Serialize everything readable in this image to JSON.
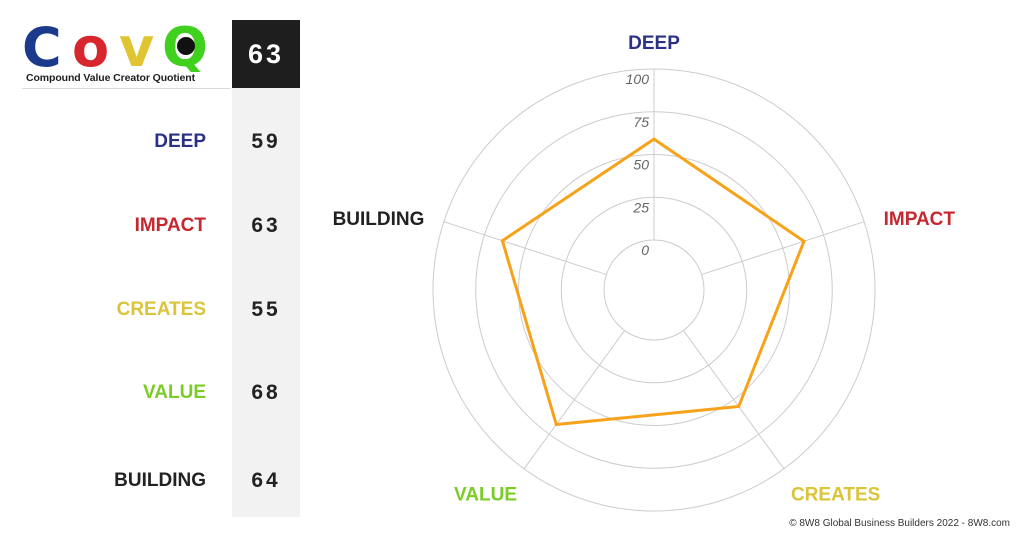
{
  "logo": {
    "letters": [
      {
        "char": "C",
        "color": "#1b3a8c"
      },
      {
        "char": "o",
        "color": "#d7262e"
      },
      {
        "char": "v",
        "color": "#e0c431"
      },
      {
        "char": "Q",
        "color": "#3fd11e"
      }
    ],
    "subtitle": "Compound Value Creator Quotient"
  },
  "total_score": "63",
  "scores": [
    {
      "label": "DEEP",
      "value": "59",
      "color": "#2b3285"
    },
    {
      "label": "IMPACT",
      "value": "63",
      "color": "#c62830"
    },
    {
      "label": "CREATES",
      "value": "55",
      "color": "#d9c43a"
    },
    {
      "label": "VALUE",
      "value": "68",
      "color": "#7ccc28"
    },
    {
      "label": "BUILDING",
      "value": "64",
      "color": "#222222"
    }
  ],
  "chart_data": {
    "type": "radar",
    "axes": [
      "DEEP",
      "IMPACT",
      "CREATES",
      "VALUE",
      "BUILDING"
    ],
    "axis_colors": [
      "#2b3285",
      "#c62830",
      "#d9c43a",
      "#7ccc28",
      "#222222"
    ],
    "values": [
      59,
      63,
      55,
      68,
      64
    ],
    "ticks": [
      0,
      25,
      50,
      75,
      100
    ],
    "range": [
      0,
      100
    ],
    "series_color": "#f7a21b",
    "grid": true
  },
  "copyright": "© 8W8 Global Business Builders 2022 - 8W8.com"
}
